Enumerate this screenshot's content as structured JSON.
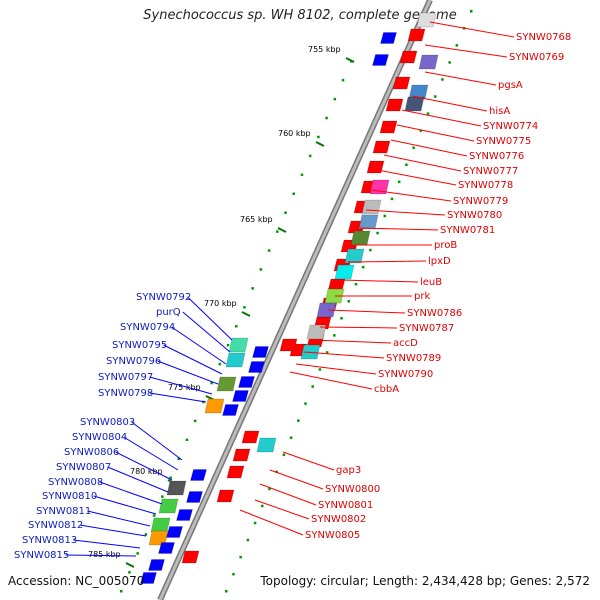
{
  "title": "Synechococcus sp. WH 8102, complete genome",
  "footer": {
    "accession": "Accession: NC_005070",
    "topology": "Topology: circular; Length: 2,434,428 bp; Genes: 2,572"
  },
  "colors": {
    "backbone": "#999999",
    "forward_gene": "#ff0000",
    "reverse_gene": "#0000ff",
    "tick": "#009900",
    "label_right": "#e00000",
    "label_left": "#1020c0"
  },
  "kbp_marks": [
    "755 kbp",
    "760 kbp",
    "765 kbp",
    "770 kbp",
    "775 kbp",
    "780 kbp",
    "785 kbp"
  ],
  "right_labels": [
    "SYNW0768",
    "SYNW0769",
    "pgsA",
    "hisA",
    "SYNW0774",
    "SYNW0775",
    "SYNW0776",
    "SYNW0777",
    "SYNW0778",
    "SYNW0779",
    "SYNW0780",
    "SYNW0781",
    "proB",
    "lpxD",
    "leuB",
    "prk",
    "SYNW0786",
    "SYNW0787",
    "accD",
    "SYNW0789",
    "SYNW0790",
    "cbbA",
    "gap3",
    "SYNW0800",
    "SYNW0801",
    "SYNW0802",
    "SYNW0805"
  ],
  "left_labels": [
    "SYNW0792",
    "purQ",
    "SYNW0794",
    "SYNW0795",
    "SYNW0796",
    "SYNW0797",
    "SYNW0798",
    "SYNW0803",
    "SYNW0804",
    "SYNW0806",
    "SYNW0807",
    "SYNW0808",
    "SYNW0810",
    "SYNW0811",
    "SYNW0812",
    "SYNW0813",
    "SYNW0815"
  ]
}
